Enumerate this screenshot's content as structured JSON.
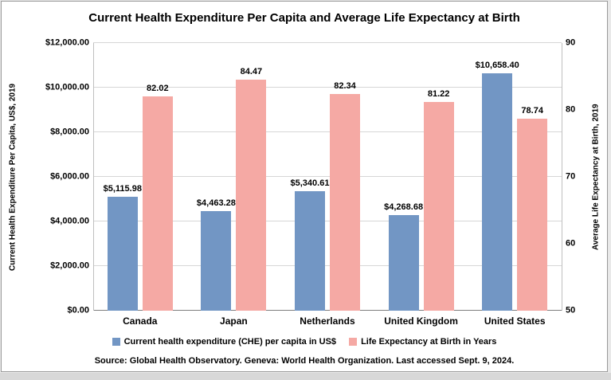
{
  "title": "Current Health Expenditure Per Capita and Average Life Expectancy at Birth",
  "chart_data": {
    "type": "bar",
    "categories": [
      "Canada",
      "Japan",
      "Netherlands",
      "United Kingdom",
      "United States"
    ],
    "series": [
      {
        "name": "Current health expenditure (CHE) per capita in US$",
        "axis": "left",
        "color": "#7296c4",
        "values": [
          5115.98,
          4463.28,
          5340.61,
          4268.68,
          10658.4
        ],
        "labels": [
          "$5,115.98",
          "$4,463.28",
          "$5,340.61",
          "$4,268.68",
          "$10,658.40"
        ]
      },
      {
        "name": "Life Expectancy at Birth in Years",
        "axis": "right",
        "color": "#f5a9a4",
        "values": [
          82.02,
          84.47,
          82.34,
          81.22,
          78.74
        ],
        "labels": [
          "82.02",
          "84.47",
          "82.34",
          "81.22",
          "78.74"
        ]
      }
    ],
    "left_axis": {
      "label": "Current Health Expenditure Per Capita, US$, 2019",
      "min": 0,
      "max": 12000,
      "step": 2000,
      "tick_labels": [
        "$12,000.00",
        "$10,000.00",
        "$8,000.00",
        "$6,000.00",
        "$4,000.00",
        "$2,000.00",
        "$0.00"
      ]
    },
    "right_axis": {
      "label": "Average Life Expectancy at Birth, 2019",
      "min": 50,
      "max": 90,
      "step": 10,
      "tick_labels": [
        "90",
        "80",
        "70",
        "60",
        "50"
      ]
    },
    "grid": true,
    "legend_position": "bottom",
    "source": "Source: Global Health Observatory. Geneva: World Health Organization. Last accessed Sept. 9, 2024."
  }
}
